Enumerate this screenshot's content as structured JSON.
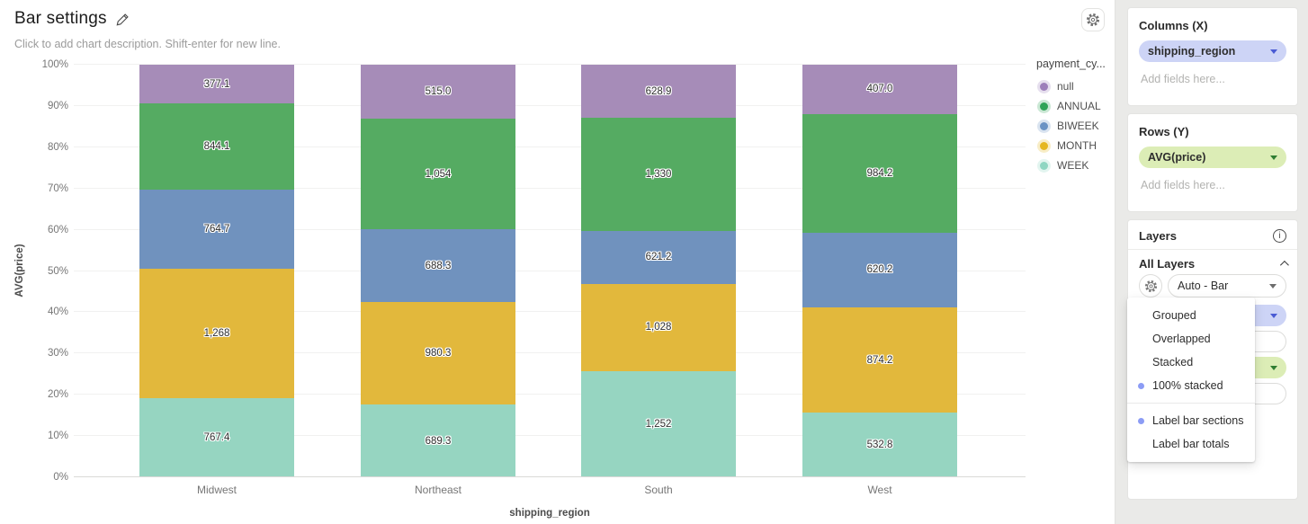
{
  "header": {
    "title": "Bar settings",
    "subtitle": "Click to add chart description. Shift-enter for new line."
  },
  "chart_data": {
    "type": "bar",
    "variant": "100% stacked horizontal-category vertical bars",
    "categories": [
      "Midwest",
      "Northeast",
      "South",
      "West"
    ],
    "series": [
      {
        "name": "WEEK",
        "color": "#96d5c1",
        "values": [
          767.4,
          689.3,
          1252,
          532.8
        ],
        "labels": [
          "767.4",
          "689.3",
          "1,252",
          "532.8"
        ]
      },
      {
        "name": "MONTH",
        "color": "#e2b83c",
        "values": [
          1268,
          980.3,
          1028,
          874.2
        ],
        "labels": [
          "1,268",
          "980.3",
          "1,028",
          "874.2"
        ]
      },
      {
        "name": "BIWEEK",
        "color": "#7092be",
        "values": [
          764.7,
          688.3,
          621.2,
          620.2
        ],
        "labels": [
          "764.7",
          "688.3",
          "621.2",
          "620.2"
        ]
      },
      {
        "name": "ANNUAL",
        "color": "#55ab62",
        "values": [
          844.1,
          1054,
          1330,
          984.2
        ],
        "labels": [
          "844.1",
          "1,054",
          "1,330",
          "984.2"
        ]
      },
      {
        "name": "null",
        "color": "#a68cb8",
        "values": [
          377.1,
          515.0,
          628.9,
          407.0
        ],
        "labels": [
          "377.1",
          "515.0",
          "628.9",
          "407.0"
        ]
      }
    ],
    "stack_order_bottom_to_top": [
      "WEEK",
      "MONTH",
      "BIWEEK",
      "ANNUAL",
      "null"
    ],
    "xlabel": "shipping_region",
    "ylabel": "AVG(price)",
    "ylim": [
      0,
      100
    ],
    "y_ticks": [
      "0%",
      "10%",
      "20%",
      "30%",
      "40%",
      "50%",
      "60%",
      "70%",
      "80%",
      "90%",
      "100%"
    ],
    "grid": true,
    "legend": {
      "title": "payment_cy...",
      "position": "right",
      "items": [
        {
          "label": "null",
          "color": "#9d7fba"
        },
        {
          "label": "ANNUAL",
          "color": "#2fa457"
        },
        {
          "label": "BIWEEK",
          "color": "#6b93c4"
        },
        {
          "label": "MONTH",
          "color": "#e5b71f"
        },
        {
          "label": "WEEK",
          "color": "#8fd6c2"
        }
      ]
    }
  },
  "sidebar": {
    "columns_section": {
      "title": "Columns (X)",
      "field": "shipping_region",
      "placeholder": "Add fields here..."
    },
    "rows_section": {
      "title": "Rows (Y)",
      "field": "AVG(price)",
      "placeholder": "Add fields here..."
    },
    "layers_section": {
      "title": "Layers",
      "group_title": "All Layers",
      "mark_select": "Auto - Bar",
      "placeholder": "Add fields here..."
    },
    "menu": {
      "groups": [
        {
          "items": [
            {
              "label": "Grouped",
              "selected": false
            },
            {
              "label": "Overlapped",
              "selected": false
            },
            {
              "label": "Stacked",
              "selected": false
            },
            {
              "label": "100% stacked",
              "selected": true
            }
          ]
        },
        {
          "items": [
            {
              "label": "Label bar sections",
              "selected": true
            },
            {
              "label": "Label bar totals",
              "selected": false
            }
          ]
        }
      ]
    }
  },
  "palette": {
    "x_field_pill": "#cdd4f6",
    "y_field_pill": "#dcedb6",
    "menu_selected_bullet": "#8c9cf5",
    "sidebar_background": "#eaeae8"
  }
}
